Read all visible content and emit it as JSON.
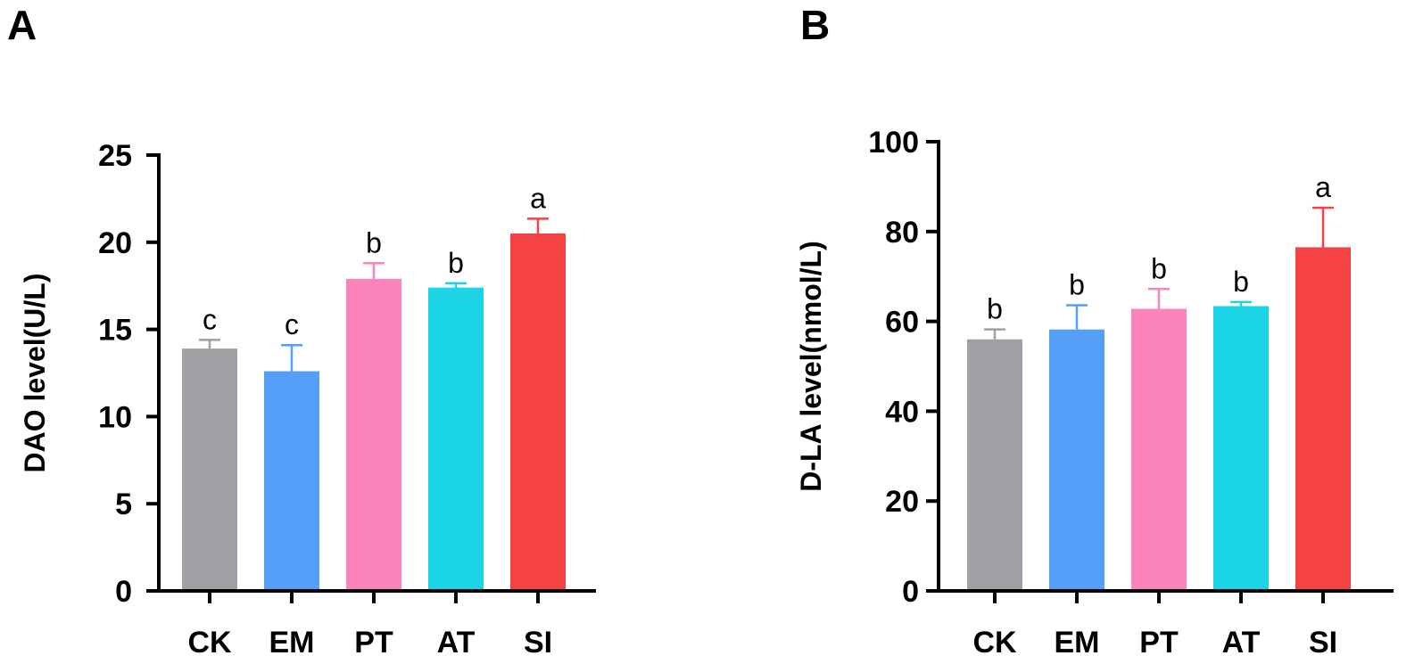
{
  "colors": {
    "CK": "#a0a0a4",
    "EM": "#569ff8",
    "PT": "#fc84bd",
    "AT": "#1bd4e6",
    "SI": "#f54245"
  },
  "chart_data": [
    {
      "type": "bar",
      "panel": "A",
      "ylabel": "DAO level(U/L)",
      "xlabel": "",
      "categories": [
        "CK",
        "EM",
        "PT",
        "AT",
        "SI"
      ],
      "values": [
        13.9,
        12.6,
        17.9,
        17.4,
        20.5
      ],
      "errors": [
        0.5,
        1.5,
        0.9,
        0.25,
        0.85
      ],
      "significance": [
        "c",
        "c",
        "b",
        "b",
        "a"
      ],
      "ylim": [
        0,
        25
      ],
      "yticks": [
        0,
        5,
        10,
        15,
        20,
        25
      ],
      "grid": false
    },
    {
      "type": "bar",
      "panel": "B",
      "ylabel": "D-LA level(nmol/L)",
      "xlabel": "",
      "categories": [
        "CK",
        "EM",
        "PT",
        "AT",
        "SI"
      ],
      "values": [
        56,
        58.2,
        62.8,
        63.4,
        76.5
      ],
      "errors": [
        2.2,
        5.4,
        4.4,
        0.9,
        8.8
      ],
      "significance": [
        "b",
        "b",
        "b",
        "b",
        "a"
      ],
      "ylim": [
        0,
        100
      ],
      "yticks": [
        0,
        20,
        40,
        60,
        80,
        100
      ],
      "grid": false
    }
  ]
}
